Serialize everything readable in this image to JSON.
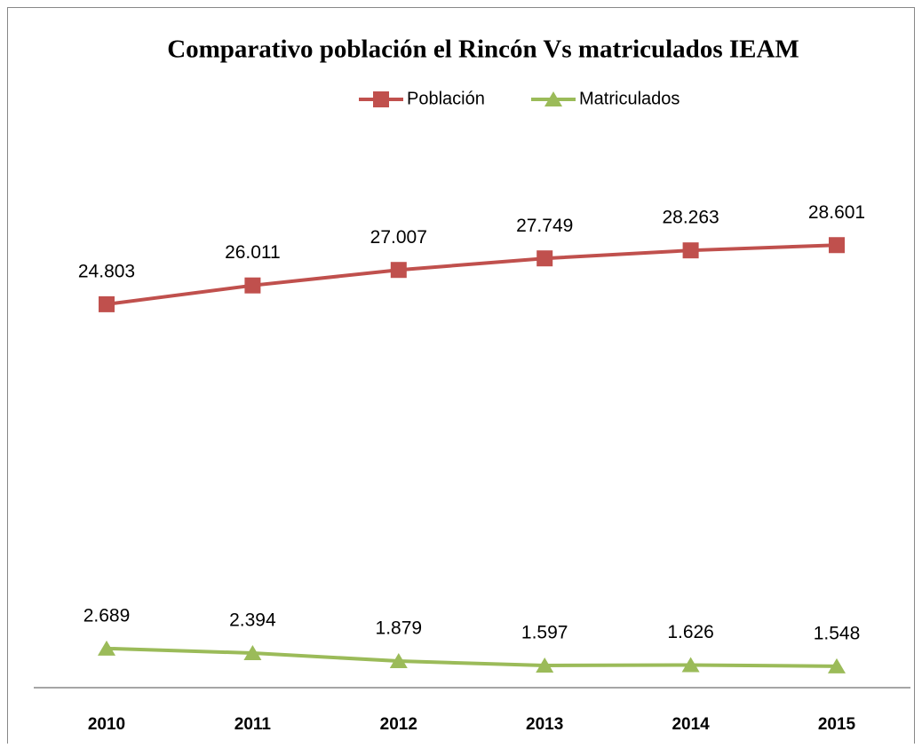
{
  "chart_data": {
    "type": "line",
    "title": "Comparativo población el Rincón Vs matriculados IEAM",
    "categories": [
      "2010",
      "2011",
      "2012",
      "2013",
      "2014",
      "2015"
    ],
    "series": [
      {
        "name": "Población",
        "color": "#c0504d",
        "marker": "square",
        "values": [
          24803,
          26011,
          27007,
          27749,
          28263,
          28601
        ],
        "value_labels": [
          "24.803",
          "26.011",
          "27.007",
          "27.749",
          "28.263",
          "28.601"
        ]
      },
      {
        "name": "Matriculados",
        "color": "#9bbb59",
        "marker": "triangle",
        "values": [
          2689,
          2394,
          1879,
          1597,
          1626,
          1548
        ],
        "value_labels": [
          "2.689",
          "2.394",
          "1.879",
          "1.597",
          "1.626",
          "1.548"
        ]
      }
    ],
    "ylim": [
      0,
      35000
    ],
    "legend": "top"
  }
}
